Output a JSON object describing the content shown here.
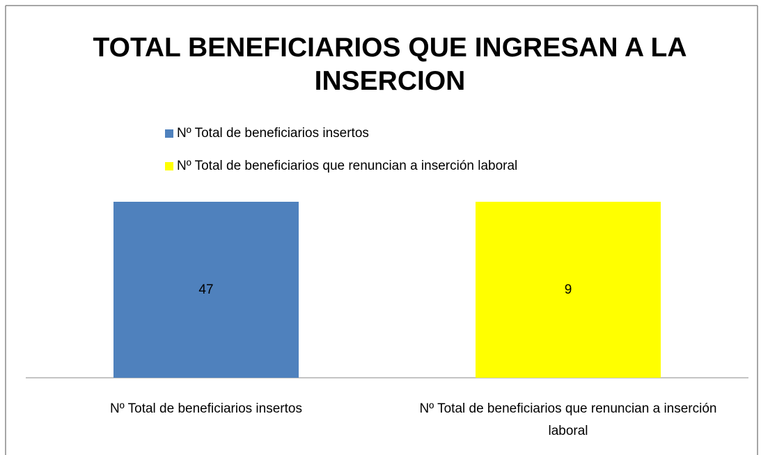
{
  "chart_data": {
    "type": "bar",
    "stacking": "percent",
    "title": "TOTAL BENEFICIARIOS QUE INGRESAN A LA INSERCION",
    "categories": [
      "Nº Total de beneficiarios insertos",
      "Nº Total de beneficiarios que renuncian a inserción laboral"
    ],
    "series": [
      {
        "name": "Nº Total de beneficiarios insertos",
        "color": "#4f81bd",
        "values": [
          47,
          null
        ]
      },
      {
        "name": "Nº Total de beneficiarios que renuncian a inserción laboral",
        "color": "#ffff00",
        "values": [
          null,
          9
        ]
      }
    ],
    "legend": "top",
    "data_labels": true
  }
}
